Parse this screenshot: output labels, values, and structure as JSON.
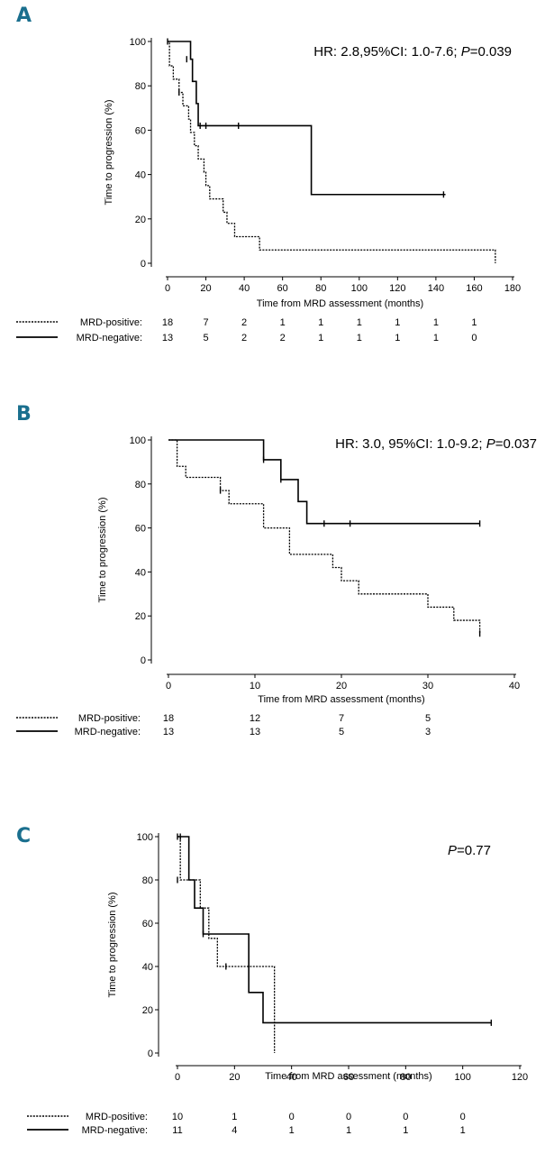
{
  "chart_data": [
    {
      "panel": "A",
      "type": "line",
      "step": true,
      "annotation": {
        "prefix": "HR: 2.8,95%CI: 1.0-7.6; ",
        "p_symbol": "P",
        "p_text": "=0.039"
      },
      "xlabel": "Time from MRD assessment (months)",
      "ylabel": "Time to progression (%)",
      "xlim": [
        0,
        180
      ],
      "ylim": [
        0,
        100
      ],
      "xticks": [
        0,
        20,
        40,
        60,
        80,
        100,
        120,
        140,
        160,
        180
      ],
      "yticks": [
        0,
        20,
        40,
        60,
        80,
        100
      ],
      "series": [
        {
          "name": "MRD-positive",
          "style": "dotted",
          "color": "#000000",
          "points": [
            [
              0,
              100
            ],
            [
              1,
              89
            ],
            [
              3,
              83
            ],
            [
              6,
              77
            ],
            [
              8,
              71
            ],
            [
              11,
              65
            ],
            [
              12,
              59
            ],
            [
              14,
              53
            ],
            [
              16,
              47
            ],
            [
              19,
              41
            ],
            [
              20,
              35
            ],
            [
              22,
              29
            ],
            [
              29,
              23
            ],
            [
              31,
              18
            ],
            [
              35,
              12
            ],
            [
              48,
              6
            ],
            [
              171,
              6
            ],
            [
              171,
              0
            ]
          ],
          "censored": [
            [
              6,
              77
            ]
          ]
        },
        {
          "name": "MRD-negative",
          "style": "solid",
          "color": "#000000",
          "points": [
            [
              0,
              100
            ],
            [
              12,
              92
            ],
            [
              13,
              82
            ],
            [
              15,
              72
            ],
            [
              16,
              62
            ],
            [
              75,
              62
            ],
            [
              75,
              31
            ],
            [
              145,
              31
            ]
          ],
          "censored": [
            [
              0,
              100
            ],
            [
              10,
              92
            ],
            [
              17,
              62
            ],
            [
              20,
              62
            ],
            [
              37,
              62
            ],
            [
              144,
              31
            ]
          ]
        }
      ],
      "risk_table": {
        "x_positions": [
          0,
          20,
          40,
          60,
          80,
          100,
          120,
          140,
          160
        ],
        "rows": [
          {
            "label": "MRD-positive:",
            "style": "dotted",
            "values": [
              "18",
              "7",
              "2",
              "1",
              "1",
              "1",
              "1",
              "1",
              "1"
            ]
          },
          {
            "label": "MRD-negative:",
            "style": "solid",
            "values": [
              "13",
              "5",
              "2",
              "2",
              "1",
              "1",
              "1",
              "1",
              "0"
            ]
          }
        ]
      }
    },
    {
      "panel": "B",
      "type": "line",
      "step": true,
      "annotation": {
        "prefix": "HR: 3.0, 95%CI: 1.0-9.2; ",
        "p_symbol": "P",
        "p_text": "=0.037"
      },
      "xlabel": "Time from MRD assessment (months)",
      "ylabel": "Time to progression (%)",
      "xlim": [
        0,
        40
      ],
      "ylim": [
        0,
        100
      ],
      "xticks": [
        0,
        10,
        20,
        30,
        40
      ],
      "yticks": [
        0,
        20,
        40,
        60,
        80,
        100
      ],
      "series": [
        {
          "name": "MRD-positive",
          "style": "dotted",
          "color": "#000000",
          "points": [
            [
              0,
              100
            ],
            [
              1,
              88
            ],
            [
              2,
              83
            ],
            [
              6,
              77
            ],
            [
              7,
              71
            ],
            [
              11,
              60
            ],
            [
              14,
              48
            ],
            [
              19,
              42
            ],
            [
              20,
              36
            ],
            [
              22,
              30
            ],
            [
              30,
              24
            ],
            [
              33,
              18
            ],
            [
              36,
              18
            ],
            [
              36,
              12
            ]
          ],
          "censored": [
            [
              6,
              77
            ],
            [
              36,
              12
            ]
          ]
        },
        {
          "name": "MRD-negative",
          "style": "solid",
          "color": "#000000",
          "points": [
            [
              0,
              100
            ],
            [
              11,
              100
            ],
            [
              11,
              91
            ],
            [
              13,
              91
            ],
            [
              13,
              82
            ],
            [
              15,
              82
            ],
            [
              15,
              72
            ],
            [
              16,
              72
            ],
            [
              16,
              62
            ],
            [
              36,
              62
            ]
          ],
          "censored": [
            [
              11,
              91
            ],
            [
              13,
              82
            ],
            [
              18,
              62
            ],
            [
              21,
              62
            ],
            [
              36,
              62
            ]
          ]
        }
      ],
      "risk_table": {
        "x_positions": [
          0,
          10,
          20,
          30
        ],
        "rows": [
          {
            "label": "MRD-positive:",
            "style": "dotted",
            "values": [
              "18",
              "12",
              "7",
              "5"
            ]
          },
          {
            "label": "MRD-negative:",
            "style": "solid",
            "values": [
              "13",
              "13",
              "5",
              "3"
            ]
          }
        ]
      }
    },
    {
      "panel": "C",
      "type": "line",
      "step": true,
      "annotation": {
        "prefix": "",
        "p_symbol": "P",
        "p_text": "=0.77"
      },
      "xlabel": "Time from MRD assessment (months)",
      "ylabel": "Time to progression (%)",
      "xlim": [
        0,
        120
      ],
      "ylim": [
        0,
        100
      ],
      "xticks": [
        0,
        20,
        40,
        60,
        80,
        100,
        120
      ],
      "yticks": [
        0,
        20,
        40,
        60,
        80,
        100
      ],
      "series": [
        {
          "name": "MRD-positive",
          "style": "dotted",
          "color": "#000000",
          "points": [
            [
              0,
              100
            ],
            [
              1,
              80
            ],
            [
              6,
              80
            ],
            [
              8,
              67
            ],
            [
              11,
              53
            ],
            [
              14,
              40
            ],
            [
              34,
              40
            ],
            [
              34,
              0
            ]
          ],
          "censored": [
            [
              1,
              100
            ],
            [
              17,
              40
            ]
          ]
        },
        {
          "name": "MRD-negative",
          "style": "solid",
          "color": "#000000",
          "points": [
            [
              0,
              100
            ],
            [
              3,
              100
            ],
            [
              4,
              80
            ],
            [
              6,
              67
            ],
            [
              9,
              55
            ],
            [
              25,
              55
            ],
            [
              25,
              28
            ],
            [
              30,
              28
            ],
            [
              30,
              14
            ],
            [
              110,
              14
            ]
          ],
          "censored": [
            [
              0,
              100
            ],
            [
              0,
              80
            ],
            [
              9,
              55
            ],
            [
              110,
              14
            ]
          ]
        }
      ],
      "risk_table": {
        "x_positions": [
          0,
          20,
          40,
          60,
          80,
          100
        ],
        "rows": [
          {
            "label": "MRD-positive:",
            "style": "dotted",
            "values": [
              "10",
              "1",
              "0",
              "0",
              "0",
              "0"
            ]
          },
          {
            "label": "MRD-negative:",
            "style": "solid",
            "values": [
              "11",
              "4",
              "1",
              "1",
              "1",
              "1"
            ]
          }
        ]
      }
    }
  ]
}
